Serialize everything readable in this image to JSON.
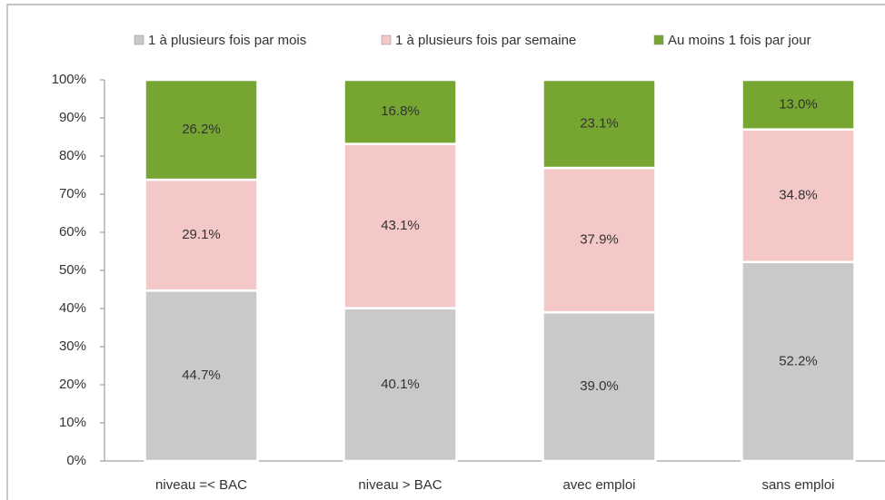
{
  "chart_data": {
    "type": "stacked_bar",
    "categories": [
      "niveau =< BAC",
      "niveau > BAC",
      "avec emploi",
      "sans emploi"
    ],
    "series": [
      {
        "name": "1 à plusieurs fois par mois",
        "color": "#c9c9c9",
        "values": [
          44.7,
          40.1,
          39.0,
          52.2
        ],
        "value_labels": [
          "44.7%",
          "40.1%",
          "39.0%",
          "52.2%"
        ]
      },
      {
        "name": "1 à plusieurs fois par semaine",
        "color": "#f5c8c8",
        "values": [
          29.1,
          43.1,
          37.9,
          34.8
        ],
        "value_labels": [
          "29.1%",
          "43.1%",
          "37.9%",
          "34.8%"
        ]
      },
      {
        "name": "Au moins 1 fois par jour",
        "color": "#76a531",
        "values": [
          26.2,
          16.8,
          23.1,
          13.0
        ],
        "value_labels": [
          "26.2%",
          "16.8%",
          "23.1%",
          "13.0%"
        ]
      }
    ],
    "ylim": [
      0,
      100
    ],
    "yticks": [
      {
        "value": 0,
        "label": "0%"
      },
      {
        "value": 10,
        "label": "10%"
      },
      {
        "value": 20,
        "label": "20%"
      },
      {
        "value": 30,
        "label": "30%"
      },
      {
        "value": 40,
        "label": "40%"
      },
      {
        "value": 50,
        "label": "50%"
      },
      {
        "value": 60,
        "label": "60%"
      },
      {
        "value": 70,
        "label": "70%"
      },
      {
        "value": 80,
        "label": "80%"
      },
      {
        "value": 90,
        "label": "90%"
      },
      {
        "value": 100,
        "label": "100%"
      }
    ],
    "legend": "top",
    "grid": false
  }
}
